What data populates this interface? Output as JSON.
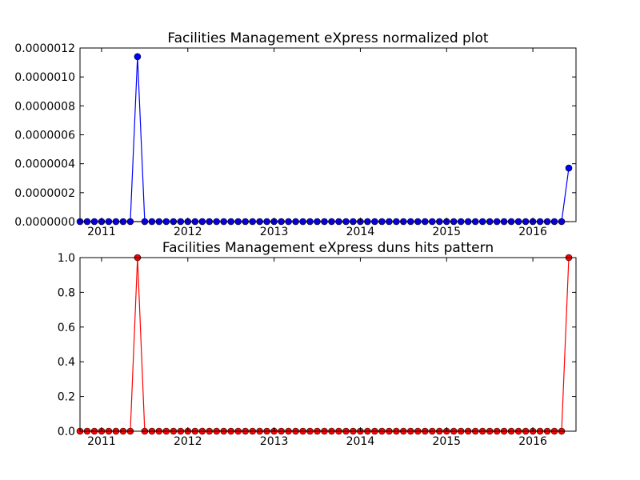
{
  "chart_data": [
    {
      "type": "line",
      "title": "Facilities Management eXpress normalized plot",
      "xlabel": "",
      "ylabel": "",
      "xlim": [
        "2010-10",
        "2016-07"
      ],
      "ylim": [
        0,
        1.2e-06
      ],
      "x_tick_labels": [
        "2011",
        "2012",
        "2013",
        "2014",
        "2015",
        "2016"
      ],
      "y_tick_labels": [
        "0.0000000",
        "0.0000002",
        "0.0000004",
        "0.0000006",
        "0.0000008",
        "0.0000010",
        "0.0000012"
      ],
      "grid": false,
      "series": [
        {
          "color": "#0000ff",
          "marker": "circle",
          "start": "2010-10",
          "step": "month",
          "values": [
            0,
            0,
            0,
            0,
            0,
            0,
            0,
            0,
            1.14e-06,
            0,
            0,
            0,
            0,
            0,
            0,
            0,
            0,
            0,
            0,
            0,
            0,
            0,
            0,
            0,
            0,
            0,
            0,
            0,
            0,
            0,
            0,
            0,
            0,
            0,
            0,
            0,
            0,
            0,
            0,
            0,
            0,
            0,
            0,
            0,
            0,
            0,
            0,
            0,
            0,
            0,
            0,
            0,
            0,
            0,
            0,
            0,
            0,
            0,
            0,
            0,
            0,
            0,
            0,
            0,
            0,
            0,
            0,
            0,
            3.7e-07
          ]
        },
        {
          "color": "#ff0000",
          "marker": "none",
          "start": "2010-10",
          "step": "month",
          "values": [
            0,
            0,
            0,
            0,
            0,
            0,
            0,
            0,
            0,
            0,
            0,
            0,
            0,
            0,
            0,
            0,
            0,
            0,
            0,
            0,
            0,
            0,
            0,
            0,
            0,
            0,
            0,
            0,
            0,
            0,
            0,
            0,
            0,
            0,
            0,
            0,
            0,
            0,
            0,
            0,
            0,
            0,
            0,
            0,
            0,
            0,
            0,
            0,
            0,
            0,
            0,
            0,
            0,
            0,
            0,
            0,
            0,
            0,
            0,
            0,
            0,
            0,
            0,
            0,
            0,
            0,
            0,
            0,
            0
          ]
        }
      ]
    },
    {
      "type": "line",
      "title": "Facilities Management eXpress duns hits pattern",
      "xlabel": "",
      "ylabel": "",
      "xlim": [
        "2010-10",
        "2016-07"
      ],
      "ylim": [
        0,
        1.0
      ],
      "x_tick_labels": [
        "2011",
        "2012",
        "2013",
        "2014",
        "2015",
        "2016"
      ],
      "y_tick_labels": [
        "0.0",
        "0.2",
        "0.4",
        "0.6",
        "0.8",
        "1.0"
      ],
      "grid": false,
      "series": [
        {
          "color": "#ff0000",
          "marker": "circle",
          "start": "2010-10",
          "step": "month",
          "values": [
            0,
            0,
            0,
            0,
            0,
            0,
            0,
            0,
            1,
            0,
            0,
            0,
            0,
            0,
            0,
            0,
            0,
            0,
            0,
            0,
            0,
            0,
            0,
            0,
            0,
            0,
            0,
            0,
            0,
            0,
            0,
            0,
            0,
            0,
            0,
            0,
            0,
            0,
            0,
            0,
            0,
            0,
            0,
            0,
            0,
            0,
            0,
            0,
            0,
            0,
            0,
            0,
            0,
            0,
            0,
            0,
            0,
            0,
            0,
            0,
            0,
            0,
            0,
            0,
            0,
            0,
            0,
            0,
            1
          ]
        }
      ]
    }
  ]
}
